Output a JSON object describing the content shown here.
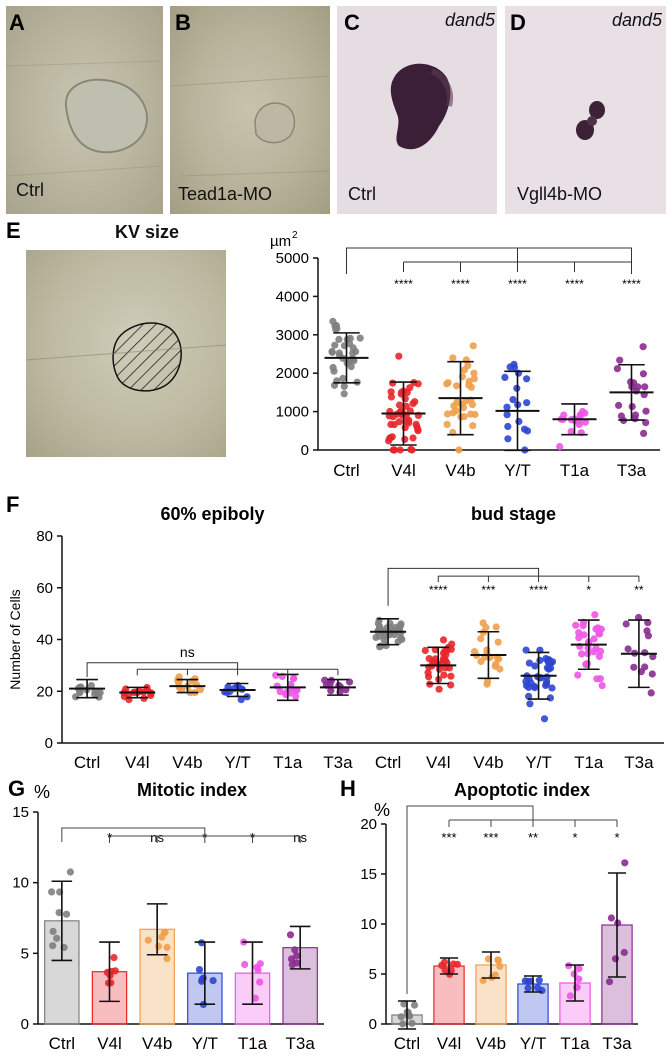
{
  "photos": {
    "A": {
      "label": "A",
      "caption": "Ctrl"
    },
    "B": {
      "label": "B",
      "caption": "Tead1a-MO"
    },
    "C": {
      "label": "C",
      "caption": "Ctrl",
      "gene": "dand5"
    },
    "D": {
      "label": "D",
      "caption": "Vgll4b-MO",
      "gene": "dand5"
    }
  },
  "colors": {
    "Ctrl": "#7f7f7f",
    "V4l": "#e8262a",
    "V4b": "#f0a04b",
    "Y/T": "#2e46d1",
    "T1a": "#ee55e6",
    "T3a": "#8a2b90"
  },
  "chart_data": [
    {
      "panel": "E",
      "type": "scatter",
      "title": "KV size",
      "ylabel": "µm2",
      "ylim": [
        0,
        5000
      ],
      "yticks": [
        "0",
        "1000",
        "2000",
        "3000",
        "4000",
        "5000"
      ],
      "categories": [
        "Ctrl",
        "V4l",
        "V4b",
        "Y/T",
        "T1a",
        "T3a"
      ],
      "means": [
        2400,
        950,
        1350,
        1020,
        800,
        1500
      ],
      "sds": [
        650,
        820,
        950,
        1030,
        400,
        720
      ],
      "significance": [
        "",
        "****",
        "****",
        "****",
        "****",
        "****"
      ]
    },
    {
      "panel": "F",
      "type": "scatter",
      "ylabel": "Number of Cells",
      "ylim": [
        0,
        80
      ],
      "yticks": [
        "0",
        "20",
        "40",
        "60",
        "80"
      ],
      "groups": [
        {
          "title": "60% epiboly",
          "categories": [
            "Ctrl",
            "V4l",
            "V4b",
            "Y/T",
            "T1a",
            "T3a"
          ],
          "means": [
            21,
            19.5,
            22,
            20.5,
            21.5,
            21.5
          ],
          "sds": [
            3.5,
            2,
            2.5,
            2.5,
            5,
            3
          ],
          "bracket_label": "ns"
        },
        {
          "title": "bud stage",
          "categories": [
            "Ctrl",
            "V4l",
            "V4b",
            "Y/T",
            "T1a",
            "T3a"
          ],
          "means": [
            43,
            30,
            34,
            26,
            38,
            34.5
          ],
          "sds": [
            5,
            7,
            9,
            9,
            9.5,
            13
          ],
          "significance": [
            "",
            "****",
            "***",
            "****",
            "*",
            "**"
          ]
        }
      ]
    },
    {
      "panel": "G",
      "type": "bar",
      "title": "Mitotic index",
      "ylabel": "%",
      "ylim": [
        0,
        15
      ],
      "yticks": [
        "0",
        "5",
        "10",
        "15"
      ],
      "categories": [
        "Ctrl",
        "V4l",
        "V4b",
        "Y/T",
        "T1a",
        "T3a"
      ],
      "values": [
        7.3,
        3.7,
        6.7,
        3.6,
        3.6,
        5.4
      ],
      "sds": [
        2.8,
        2.1,
        1.8,
        2.2,
        2.2,
        1.5
      ],
      "significance": [
        "",
        "*",
        "ns",
        "*",
        "*",
        "ns"
      ]
    },
    {
      "panel": "H",
      "type": "bar",
      "title": "Apoptotic index",
      "ylabel": "%",
      "ylim": [
        0,
        20
      ],
      "yticks": [
        "0",
        "5",
        "10",
        "15",
        "20"
      ],
      "categories": [
        "Ctrl",
        "V4l",
        "V4b",
        "Y/T",
        "T1a",
        "T3a"
      ],
      "values": [
        0.9,
        5.8,
        5.9,
        4.0,
        4.1,
        9.9
      ],
      "sds": [
        1.4,
        0.8,
        1.3,
        0.8,
        1.8,
        5.2
      ],
      "significance": [
        "",
        "***",
        "***",
        "**",
        "*",
        "*"
      ]
    }
  ]
}
